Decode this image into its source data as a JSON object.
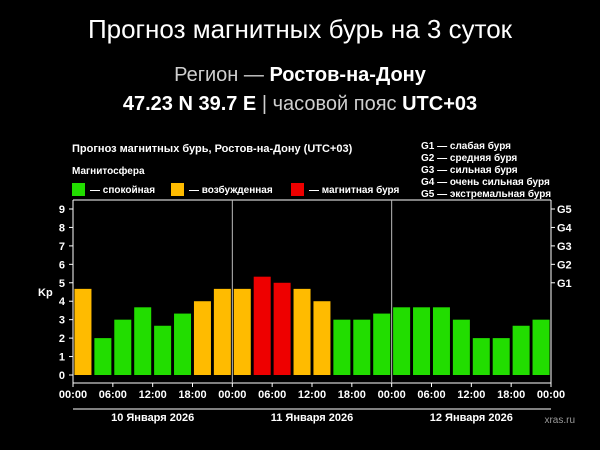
{
  "header": {
    "title": "Прогноз магнитных бурь на 3 суток",
    "region_label": "Регион —",
    "region_name": "Ростов-на-Дону",
    "coords": "47.23 N 39.7 E",
    "tz_label": "часовой пояс",
    "tz_value": "UTC+03"
  },
  "colors": {
    "calm": "#22dd00",
    "excited": "#ffbb00",
    "storm": "#ee0000"
  },
  "chart_data": {
    "type": "bar",
    "title": "Прогноз магнитных бурь, Ростов-на-Дону (UTC+03)",
    "legend_title": "Магнитосфера",
    "legend": [
      {
        "label": "— спокойная",
        "color": "#22dd00"
      },
      {
        "label": "— возбужденная",
        "color": "#ffbb00"
      },
      {
        "label": "— магнитная буря",
        "color": "#ee0000"
      }
    ],
    "storm_scale": [
      "G1 — слабая буря",
      "G2 — средняя буря",
      "G3 — сильная буря",
      "G4 — очень сильная буря",
      "G5 — экстремальная буря"
    ],
    "ylabel": "Kp",
    "ylim": [
      0,
      9
    ],
    "yticks": [
      "0",
      "1",
      "2",
      "3",
      "4",
      "5",
      "6",
      "7",
      "8",
      "9"
    ],
    "right_ticks": [
      {
        "label": "G1",
        "value": 5
      },
      {
        "label": "G2",
        "value": 6
      },
      {
        "label": "G3",
        "value": 7
      },
      {
        "label": "G4",
        "value": 8
      },
      {
        "label": "G5",
        "value": 9
      }
    ],
    "xticks": [
      "00:00",
      "06:00",
      "12:00",
      "18:00",
      "00:00",
      "06:00",
      "12:00",
      "18:00",
      "00:00",
      "06:00",
      "12:00",
      "18:00",
      "00:00"
    ],
    "days": [
      "10 Января 2026",
      "11 Января 2026",
      "12 Января 2026"
    ],
    "values": [
      4.67,
      2,
      3,
      3.67,
      2.67,
      3.33,
      4,
      4.67,
      4.67,
      5.33,
      5,
      4.67,
      4,
      3,
      3,
      3.33,
      3.67,
      3.67,
      3.67,
      3,
      2,
      2,
      2.67,
      3
    ],
    "status": [
      "excited",
      "calm",
      "calm",
      "calm",
      "calm",
      "calm",
      "excited",
      "excited",
      "excited",
      "storm",
      "storm",
      "excited",
      "excited",
      "calm",
      "calm",
      "calm",
      "calm",
      "calm",
      "calm",
      "calm",
      "calm",
      "calm",
      "calm",
      "calm"
    ],
    "grid": false,
    "watermark": "xras.ru"
  }
}
